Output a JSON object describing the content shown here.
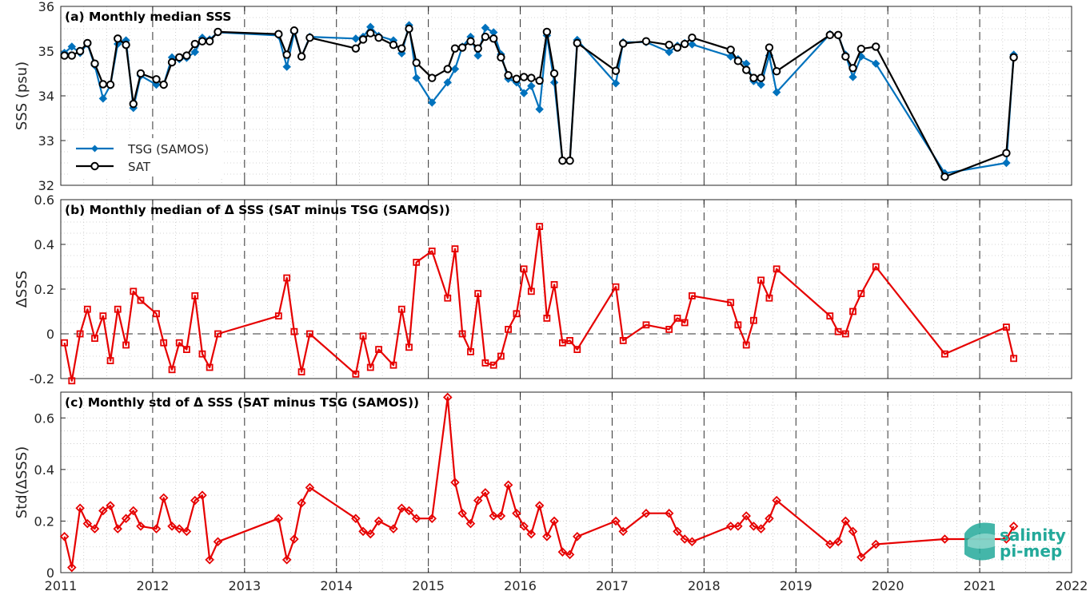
{
  "colors": {
    "tsg": "#0072bd",
    "sat": "#000000",
    "delta": "#e60000",
    "logo": "#23a99a"
  },
  "logo": {
    "line1": "salinity",
    "line2": "pi-mep"
  },
  "chart_data": [
    {
      "type": "line",
      "title": "(a) Monthly median SSS",
      "xlabel": "",
      "ylabel": "SSS (psu)",
      "xlim": [
        2011,
        2022
      ],
      "ylim": [
        32,
        36
      ],
      "yticks": [
        32,
        33,
        34,
        35,
        36
      ],
      "grid": true,
      "legend_position": "lower-left",
      "series": [
        {
          "name": "TSG (SAMOS)",
          "marker": "diamond",
          "x": [
            2011.04,
            2011.12,
            2011.21,
            2011.29,
            2011.37,
            2011.46,
            2011.54,
            2011.62,
            2011.71,
            2011.79,
            2011.87,
            2012.04,
            2012.12,
            2012.21,
            2012.29,
            2012.37,
            2012.46,
            2012.54,
            2012.62,
            2012.71,
            2013.37,
            2013.46,
            2013.54,
            2013.62,
            2013.71,
            2014.21,
            2014.29,
            2014.37,
            2014.46,
            2014.62,
            2014.71,
            2014.79,
            2014.87,
            2015.04,
            2015.21,
            2015.29,
            2015.37,
            2015.46,
            2015.54,
            2015.62,
            2015.71,
            2015.79,
            2015.87,
            2015.96,
            2016.04,
            2016.12,
            2016.21,
            2016.29,
            2016.37,
            2016.46,
            2016.54,
            2016.62,
            2017.04,
            2017.12,
            2017.37,
            2017.62,
            2017.71,
            2017.79,
            2017.87,
            2018.29,
            2018.37,
            2018.46,
            2018.54,
            2018.62,
            2018.71,
            2018.79,
            2019.37,
            2019.46,
            2019.54,
            2019.62,
            2019.71,
            2019.87,
            2020.62,
            2021.29,
            2021.37
          ],
          "y": [
            34.96,
            35.1,
            34.96,
            35.16,
            34.68,
            33.94,
            34.24,
            35.16,
            35.24,
            33.73,
            34.45,
            34.25,
            34.25,
            34.86,
            34.82,
            34.85,
            34.98,
            35.3,
            35.26,
            35.42,
            35.35,
            34.65,
            35.42,
            34.88,
            35.32,
            35.28,
            35.32,
            35.54,
            35.34,
            35.24,
            34.95,
            35.58,
            34.4,
            33.85,
            34.3,
            34.6,
            35.1,
            35.32,
            34.9,
            35.52,
            35.42,
            34.93,
            34.38,
            34.3,
            34.06,
            34.22,
            33.7,
            35.35,
            34.3,
            32.55,
            32.55,
            35.25,
            34.28,
            35.2,
            35.2,
            34.98,
            35.12,
            35.18,
            35.15,
            34.88,
            34.82,
            34.72,
            34.33,
            34.25,
            34.9,
            34.08,
            35.38,
            35.35,
            34.92,
            34.42,
            34.88,
            34.72,
            32.27,
            32.5,
            34.92
          ]
        },
        {
          "name": "SAT",
          "marker": "circle",
          "x": [
            2011.04,
            2011.12,
            2011.21,
            2011.29,
            2011.37,
            2011.46,
            2011.54,
            2011.62,
            2011.71,
            2011.79,
            2011.87,
            2012.04,
            2012.12,
            2012.21,
            2012.29,
            2012.37,
            2012.46,
            2012.54,
            2012.62,
            2012.71,
            2013.37,
            2013.46,
            2013.54,
            2013.62,
            2013.71,
            2014.21,
            2014.29,
            2014.37,
            2014.46,
            2014.62,
            2014.71,
            2014.79,
            2014.87,
            2015.04,
            2015.21,
            2015.29,
            2015.37,
            2015.46,
            2015.54,
            2015.62,
            2015.71,
            2015.79,
            2015.87,
            2015.96,
            2016.04,
            2016.12,
            2016.21,
            2016.29,
            2016.37,
            2016.46,
            2016.54,
            2016.62,
            2017.04,
            2017.12,
            2017.37,
            2017.62,
            2017.71,
            2017.79,
            2017.87,
            2018.29,
            2018.37,
            2018.46,
            2018.54,
            2018.62,
            2018.71,
            2018.79,
            2019.37,
            2019.46,
            2019.54,
            2019.62,
            2019.71,
            2019.87,
            2020.62,
            2021.29,
            2021.37
          ],
          "y": [
            34.9,
            34.9,
            35.0,
            35.18,
            34.72,
            34.26,
            34.25,
            35.28,
            35.14,
            33.82,
            34.5,
            34.37,
            34.25,
            34.75,
            34.86,
            34.9,
            35.16,
            35.22,
            35.22,
            35.43,
            35.38,
            34.92,
            35.46,
            34.88,
            35.3,
            35.06,
            35.26,
            35.4,
            35.3,
            35.14,
            35.06,
            35.5,
            34.74,
            34.4,
            34.6,
            35.06,
            35.08,
            35.22,
            35.06,
            35.32,
            35.28,
            34.86,
            34.46,
            34.38,
            34.42,
            34.4,
            34.34,
            35.43,
            34.5,
            32.55,
            32.55,
            35.18,
            34.56,
            35.17,
            35.22,
            35.14,
            35.08,
            35.16,
            35.3,
            35.03,
            34.78,
            34.58,
            34.4,
            34.4,
            35.08,
            34.55,
            35.36,
            35.36,
            34.88,
            34.62,
            35.05,
            35.1,
            32.19,
            32.72,
            34.86
          ]
        }
      ]
    },
    {
      "type": "line",
      "title": "(b) Monthly median of Δ SSS (SAT minus TSG (SAMOS))",
      "xlabel": "",
      "ylabel": "ΔSSS",
      "xlim": [
        2011,
        2022
      ],
      "ylim": [
        -0.2,
        0.6
      ],
      "yticks": [
        -0.2,
        0,
        0.2,
        0.4,
        0.6
      ],
      "ytick_labels": [
        "-0.2",
        "0",
        "0.2",
        "0.4",
        "0.6"
      ],
      "grid": true,
      "zero_line": true,
      "series": [
        {
          "marker": "square",
          "x": [
            2011.04,
            2011.12,
            2011.21,
            2011.29,
            2011.37,
            2011.46,
            2011.54,
            2011.62,
            2011.71,
            2011.79,
            2011.87,
            2012.04,
            2012.12,
            2012.21,
            2012.29,
            2012.37,
            2012.46,
            2012.54,
            2012.62,
            2012.71,
            2013.37,
            2013.46,
            2013.54,
            2013.62,
            2013.71,
            2014.21,
            2014.29,
            2014.37,
            2014.46,
            2014.62,
            2014.71,
            2014.79,
            2014.87,
            2015.04,
            2015.21,
            2015.29,
            2015.37,
            2015.46,
            2015.54,
            2015.62,
            2015.71,
            2015.79,
            2015.87,
            2015.96,
            2016.04,
            2016.12,
            2016.21,
            2016.29,
            2016.37,
            2016.46,
            2016.54,
            2016.62,
            2017.04,
            2017.12,
            2017.37,
            2017.62,
            2017.71,
            2017.79,
            2017.87,
            2018.29,
            2018.37,
            2018.46,
            2018.54,
            2018.62,
            2018.71,
            2018.79,
            2019.37,
            2019.46,
            2019.54,
            2019.62,
            2019.71,
            2019.87,
            2020.62,
            2021.29,
            2021.37
          ],
          "y": [
            -0.04,
            -0.21,
            0.0,
            0.11,
            -0.02,
            0.08,
            -0.12,
            0.11,
            -0.05,
            0.19,
            0.15,
            0.09,
            -0.04,
            -0.16,
            -0.04,
            -0.07,
            0.17,
            -0.09,
            -0.15,
            0.0,
            0.08,
            0.25,
            0.01,
            -0.17,
            0.0,
            -0.18,
            -0.01,
            -0.15,
            -0.07,
            -0.14,
            0.11,
            -0.06,
            0.32,
            0.37,
            0.16,
            0.38,
            0.0,
            -0.08,
            0.18,
            -0.13,
            -0.14,
            -0.1,
            0.02,
            0.09,
            0.29,
            0.19,
            0.48,
            0.07,
            0.22,
            -0.04,
            -0.03,
            -0.07,
            0.21,
            -0.03,
            0.04,
            0.02,
            0.07,
            0.05,
            0.17,
            0.14,
            0.04,
            -0.05,
            0.06,
            0.24,
            0.16,
            0.29,
            0.08,
            0.01,
            0.0,
            0.1,
            0.18,
            0.3,
            -0.09,
            0.03,
            -0.11
          ]
        }
      ]
    },
    {
      "type": "line",
      "title": "(c) Monthly std of Δ SSS (SAT minus TSG (SAMOS))",
      "xlabel": "",
      "ylabel": "Std(ΔSSS)",
      "xlim": [
        2011,
        2022
      ],
      "ylim": [
        0,
        0.7
      ],
      "yticks": [
        0,
        0.2,
        0.4,
        0.6
      ],
      "ytick_labels": [
        "0",
        "0.2",
        "0.4",
        "0.6"
      ],
      "xticks": [
        2011,
        2012,
        2013,
        2014,
        2015,
        2016,
        2017,
        2018,
        2019,
        2020,
        2021,
        2022
      ],
      "xtick_labels": [
        "2011",
        "2012",
        "2013",
        "2014",
        "2015",
        "2016",
        "2017",
        "2018",
        "2019",
        "2020",
        "2021",
        "2022"
      ],
      "grid": true,
      "series": [
        {
          "marker": "diamond",
          "x": [
            2011.04,
            2011.12,
            2011.21,
            2011.29,
            2011.37,
            2011.46,
            2011.54,
            2011.62,
            2011.71,
            2011.79,
            2011.87,
            2012.04,
            2012.12,
            2012.21,
            2012.29,
            2012.37,
            2012.46,
            2012.54,
            2012.62,
            2012.71,
            2013.37,
            2013.46,
            2013.54,
            2013.62,
            2013.71,
            2014.21,
            2014.29,
            2014.37,
            2014.46,
            2014.62,
            2014.71,
            2014.79,
            2014.87,
            2015.04,
            2015.21,
            2015.29,
            2015.37,
            2015.46,
            2015.54,
            2015.62,
            2015.71,
            2015.79,
            2015.87,
            2015.96,
            2016.04,
            2016.12,
            2016.21,
            2016.29,
            2016.37,
            2016.46,
            2016.54,
            2016.62,
            2017.04,
            2017.12,
            2017.37,
            2017.62,
            2017.71,
            2017.79,
            2017.87,
            2018.29,
            2018.37,
            2018.46,
            2018.54,
            2018.62,
            2018.71,
            2018.79,
            2019.37,
            2019.46,
            2019.54,
            2019.62,
            2019.71,
            2019.87,
            2020.62,
            2021.29,
            2021.37
          ],
          "y": [
            0.14,
            0.02,
            0.25,
            0.19,
            0.17,
            0.24,
            0.26,
            0.17,
            0.21,
            0.24,
            0.18,
            0.17,
            0.29,
            0.18,
            0.17,
            0.16,
            0.28,
            0.3,
            0.05,
            0.12,
            0.21,
            0.05,
            0.13,
            0.27,
            0.33,
            0.21,
            0.16,
            0.15,
            0.2,
            0.17,
            0.25,
            0.24,
            0.21,
            0.21,
            0.68,
            0.35,
            0.23,
            0.19,
            0.28,
            0.31,
            0.22,
            0.22,
            0.34,
            0.23,
            0.18,
            0.15,
            0.26,
            0.14,
            0.2,
            0.08,
            0.07,
            0.14,
            0.2,
            0.16,
            0.23,
            0.23,
            0.16,
            0.13,
            0.12,
            0.18,
            0.18,
            0.22,
            0.18,
            0.17,
            0.21,
            0.28,
            0.11,
            0.12,
            0.2,
            0.16,
            0.06,
            0.11,
            0.13,
            0.13,
            0.18
          ]
        }
      ]
    }
  ]
}
